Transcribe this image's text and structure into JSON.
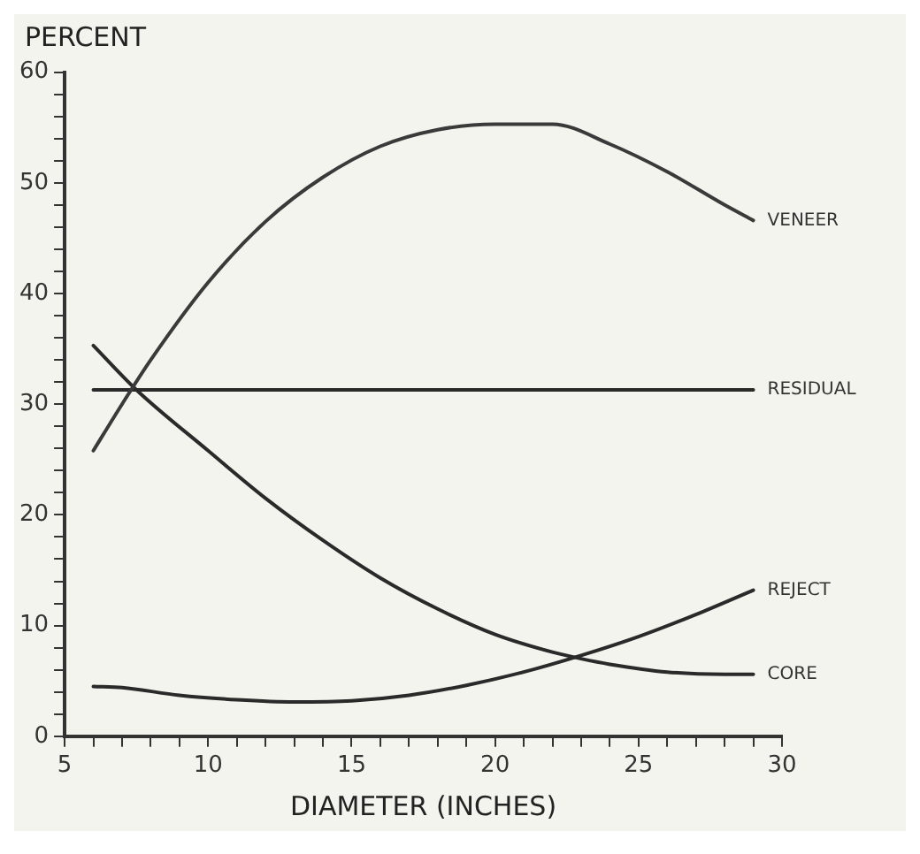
{
  "chart_data": {
    "type": "line",
    "ylabel": "PERCENT",
    "xlabel": "DIAMETER (INCHES)",
    "xlim": [
      5,
      30
    ],
    "ylim": [
      0,
      60
    ],
    "xticks": [
      5,
      {
        "value": 6,
        "label": null
      },
      {
        "value": 7,
        "label": null
      },
      {
        "value": 8,
        "label": null
      },
      {
        "value": 9,
        "label": null
      },
      10,
      {
        "value": 11,
        "label": null
      },
      {
        "value": 12,
        "label": null
      },
      {
        "value": 13,
        "label": null
      },
      {
        "value": 14,
        "label": null
      },
      15,
      {
        "value": 16,
        "label": null
      },
      {
        "value": 17,
        "label": null
      },
      {
        "value": 18,
        "label": null
      },
      {
        "value": 19,
        "label": null
      },
      20,
      {
        "value": 21,
        "label": null
      },
      {
        "value": 22,
        "label": null
      },
      {
        "value": 23,
        "label": null
      },
      {
        "value": 24,
        "label": null
      },
      25,
      {
        "value": 26,
        "label": null
      },
      {
        "value": 27,
        "label": null
      },
      {
        "value": 28,
        "label": null
      },
      {
        "value": 29,
        "label": null
      },
      30
    ],
    "yticks": [
      0,
      {
        "value": 2,
        "label": null
      },
      {
        "value": 4,
        "label": null
      },
      {
        "value": 6,
        "label": null
      },
      {
        "value": 8,
        "label": null
      },
      10,
      {
        "value": 12,
        "label": null
      },
      {
        "value": 14,
        "label": null
      },
      {
        "value": 16,
        "label": null
      },
      {
        "value": 18,
        "label": null
      },
      20,
      {
        "value": 22,
        "label": null
      },
      {
        "value": 24,
        "label": null
      },
      {
        "value": 26,
        "label": null
      },
      {
        "value": 28,
        "label": null
      },
      30,
      {
        "value": 32,
        "label": null
      },
      {
        "value": 34,
        "label": null
      },
      {
        "value": 36,
        "label": null
      },
      {
        "value": 38,
        "label": null
      },
      40,
      {
        "value": 42,
        "label": null
      },
      {
        "value": 44,
        "label": null
      },
      {
        "value": 46,
        "label": null
      },
      {
        "value": 48,
        "label": null
      },
      50,
      {
        "value": 52,
        "label": null
      },
      {
        "value": 54,
        "label": null
      },
      {
        "value": 56,
        "label": null
      },
      {
        "value": 58,
        "label": null
      },
      60
    ],
    "grid": false,
    "legend": false,
    "marker": "none",
    "line_style": "solid",
    "series": [
      {
        "name": "VENEER",
        "color": "#3a3a3a",
        "x": [
          6,
          7,
          8,
          10,
          12,
          14,
          16,
          18,
          20,
          22,
          24,
          26,
          28,
          29
        ],
        "values": [
          25.8,
          30,
          34,
          41,
          46.5,
          50.5,
          53.3,
          54.8,
          55.3,
          55.3,
          53.5,
          51,
          48,
          46.6
        ]
      },
      {
        "name": "RESIDUAL",
        "color": "#2a2a2a",
        "x": [
          6,
          29
        ],
        "values": [
          31.3,
          31.3
        ]
      },
      {
        "name": "REJECT",
        "color": "#2a2a2a",
        "x": [
          6,
          7,
          9,
          11,
          13,
          15,
          17,
          19,
          21,
          23,
          25,
          27,
          29
        ],
        "values": [
          4.5,
          4.4,
          3.7,
          3.3,
          3.1,
          3.2,
          3.7,
          4.6,
          5.8,
          7.3,
          9,
          11,
          13.2
        ]
      },
      {
        "name": "CORE",
        "color": "#2a2a2a",
        "x": [
          6,
          7.5,
          10,
          12,
          14,
          16,
          18,
          20,
          22,
          23,
          24,
          26,
          28,
          29
        ],
        "values": [
          35.3,
          31.3,
          25.8,
          21.5,
          17.7,
          14.3,
          11.5,
          9.2,
          7.6,
          7,
          6.5,
          5.8,
          5.6,
          5.6
        ]
      }
    ]
  }
}
